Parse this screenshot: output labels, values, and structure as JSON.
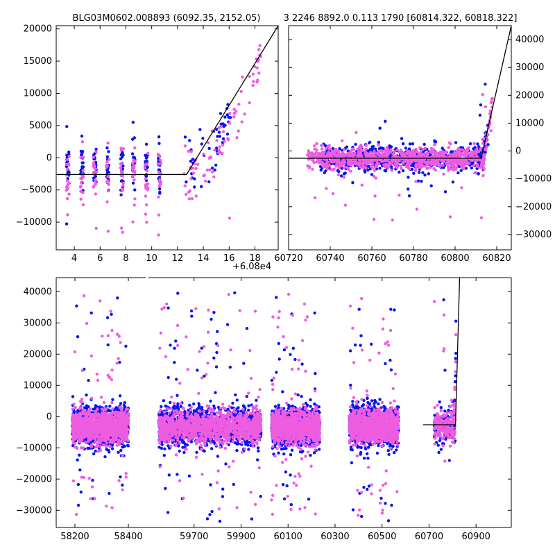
{
  "figure": {
    "title_left": "BLG03M0602.008893 (6092.35, 2152.05)",
    "title_right": "3 2246 8892.0 0.113 1790 [60814.322, 60818.322]"
  },
  "colors": {
    "series_a": "#0a14f0",
    "series_b": "#ee5ce0",
    "model": "#000000"
  },
  "chart_data": [
    {
      "id": "top-left",
      "type": "scatter",
      "title": "BLG03M0602.008893 (6092.35, 2152.05)",
      "x_offset_label": "+6.08e4",
      "xlim": [
        2.6,
        19.8
      ],
      "ylim": [
        -14300,
        20500
      ],
      "xticks": [
        4,
        6,
        8,
        10,
        12,
        14,
        16,
        18
      ],
      "yticks": [
        -10000,
        -5000,
        0,
        5000,
        10000,
        15000,
        20000
      ],
      "ytick_side": "left",
      "model_line": [
        [
          2.6,
          -2600
        ],
        [
          12.7,
          -2600
        ],
        [
          19.8,
          20500
        ]
      ],
      "seasons": [
        {
          "series": "a",
          "x_centers": [
            3.5,
            4.6,
            5.6,
            6.6,
            7.7,
            8.6,
            9.6,
            10.6
          ],
          "spread": 0.1,
          "n": 22,
          "y_mean": -1600,
          "y_sd": 1600,
          "outlier_rate": 0.05,
          "outlier_range": [
            -11000,
            7000
          ]
        },
        {
          "series": "b",
          "x_centers": [
            3.5,
            4.6,
            5.6,
            6.6,
            7.7,
            8.6,
            9.6,
            10.6
          ],
          "spread": 0.12,
          "n": 18,
          "y_mean": -2600,
          "y_sd": 2200,
          "outlier_rate": 0.12,
          "outlier_range": [
            -12000,
            3000
          ]
        }
      ],
      "rise": [
        {
          "series": "a",
          "x_range": [
            12.5,
            16.1
          ],
          "n": 45,
          "y_start": -2000,
          "y_end": 7000,
          "y_sd": 2200,
          "outlier_rate": 0.06,
          "outlier_range": [
            -6000,
            15000
          ]
        },
        {
          "series": "b",
          "x_range": [
            12.5,
            18.5
          ],
          "n": 80,
          "y_start": -2500,
          "y_end": 16500,
          "y_sd": 2000,
          "outlier_rate": 0.06,
          "outlier_range": [
            -11500,
            12000
          ]
        }
      ]
    },
    {
      "id": "top-right",
      "type": "scatter",
      "title": "3 2246 8892.0 0.113 1790 [60814.322, 60818.322]",
      "xlim": [
        60720,
        60827
      ],
      "ylim": [
        -35500,
        45000
      ],
      "xticks": [
        60720,
        60740,
        60760,
        60780,
        60800,
        60820
      ],
      "yticks": [
        -30000,
        -20000,
        -10000,
        0,
        10000,
        20000,
        30000,
        40000
      ],
      "ytick_side": "right",
      "model_line": [
        [
          60720,
          -2600
        ],
        [
          60812.5,
          -2600
        ],
        [
          60827,
          45000
        ]
      ],
      "seasons": [
        {
          "series": "a",
          "x_range": [
            60735,
            60814
          ],
          "n": 650,
          "y_mean": -2600,
          "y_sd": 2200,
          "outlier_rate": 0.025,
          "outlier_range": [
            -18000,
            13000
          ]
        },
        {
          "series": "b",
          "x_range": [
            60729,
            60814
          ],
          "n": 900,
          "y_mean": -2600,
          "y_sd": 2000,
          "outlier_rate": 0.03,
          "outlier_range": [
            -26000,
            8000
          ]
        }
      ],
      "rise": [
        {
          "series": "a",
          "x_range": [
            60811,
            60816
          ],
          "n": 30,
          "y_start": -2000,
          "y_end": 9000,
          "y_sd": 2800,
          "outlier_rate": 0.1,
          "outlier_range": [
            0,
            30000
          ]
        },
        {
          "series": "b",
          "x_range": [
            60812,
            60818
          ],
          "n": 40,
          "y_start": -2000,
          "y_end": 19000,
          "y_sd": 2500,
          "outlier_rate": 0.05,
          "outlier_range": [
            0,
            40000
          ]
        }
      ]
    },
    {
      "id": "bottom",
      "type": "scatter",
      "title": "",
      "broken_axis": true,
      "segments": [
        {
          "xlim": [
            58130,
            58470
          ],
          "xticks": [
            58200,
            58400
          ],
          "tick_labels": [
            "58200",
            "58400"
          ]
        },
        {
          "xlim": [
            59500,
            61050
          ],
          "xticks": [
            59700,
            59900,
            60100,
            60300,
            60500,
            60700,
            60900
          ],
          "tick_labels": [
            "59700",
            "59900",
            "60100",
            "60300",
            "60500",
            "60700",
            "60900"
          ]
        }
      ],
      "ylim": [
        -35500,
        44500
      ],
      "yticks": [
        -30000,
        -20000,
        -10000,
        0,
        10000,
        20000,
        30000,
        40000
      ],
      "ytick_side": "left",
      "model_line": [
        [
          60675,
          -2600
        ],
        [
          60812.5,
          -2600
        ],
        [
          60830,
          44500
        ]
      ],
      "seasons": [
        {
          "segment": 0,
          "x_range": [
            58190,
            58400
          ],
          "n_a": 900,
          "n_b": 1100
        },
        {
          "segment": 1,
          "x_range": [
            59550,
            59985
          ],
          "n_a": 1100,
          "n_b": 1300
        },
        {
          "segment": 1,
          "x_range": [
            60030,
            60235
          ],
          "n_a": 900,
          "n_b": 1100
        },
        {
          "segment": 1,
          "x_range": [
            60360,
            60570
          ],
          "n_a": 900,
          "n_b": 1100
        },
        {
          "segment": 1,
          "x_range": [
            60722,
            60812
          ],
          "n_a": 120,
          "n_b": 180
        }
      ],
      "season_y_mean": -3200,
      "season_y_sd": 2500,
      "outlier_rate": 0.04,
      "outlier_range": [
        -34000,
        40000
      ]
    }
  ]
}
